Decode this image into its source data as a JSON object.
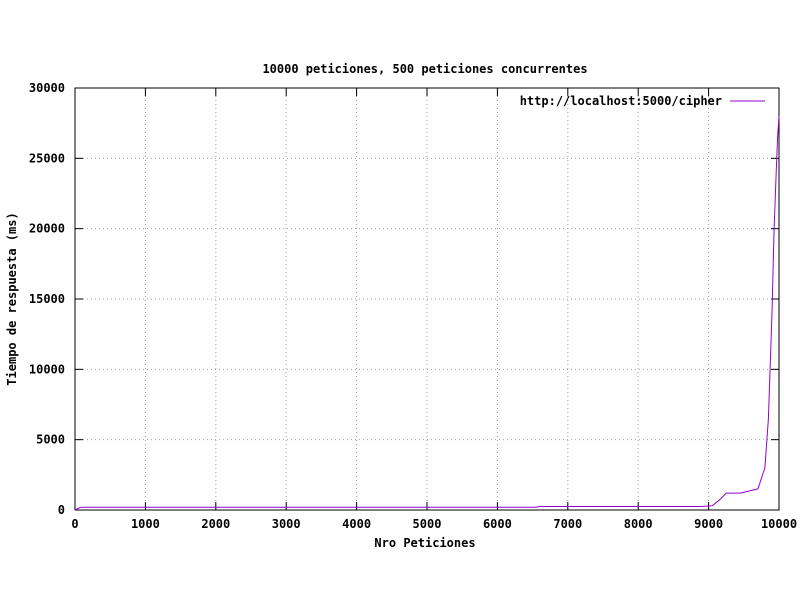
{
  "chart_data": {
    "type": "line",
    "title": "10000 peticiones, 500 peticiones concurrentes",
    "xlabel": "Nro Peticiones",
    "ylabel": "Tiempo de respuesta (ms)",
    "xlim": [
      0,
      10000
    ],
    "ylim": [
      0,
      30000
    ],
    "x_ticks": [
      "0",
      "1000",
      "2000",
      "3000",
      "4000",
      "5000",
      "6000",
      "7000",
      "8000",
      "9000",
      "10000"
    ],
    "y_ticks": [
      "0",
      "5000",
      "10000",
      "15000",
      "20000",
      "25000",
      "30000"
    ],
    "grid": true,
    "legend_position": "top-right",
    "series": [
      {
        "name": "http://localhost:5000/cipher",
        "color": "#9400d3",
        "x": [
          0,
          60,
          100,
          200,
          1000,
          2000,
          3000,
          4000,
          5000,
          6000,
          6550,
          6600,
          7000,
          8000,
          8900,
          9050,
          9150,
          9250,
          9450,
          9700,
          9800,
          9850,
          9900,
          9930,
          9960,
          9980,
          10000
        ],
        "y": [
          0,
          150,
          200,
          200,
          200,
          200,
          200,
          200,
          200,
          200,
          200,
          250,
          250,
          250,
          250,
          300,
          700,
          1200,
          1200,
          1500,
          3000,
          6500,
          14000,
          20000,
          24000,
          26500,
          28000
        ]
      }
    ]
  }
}
